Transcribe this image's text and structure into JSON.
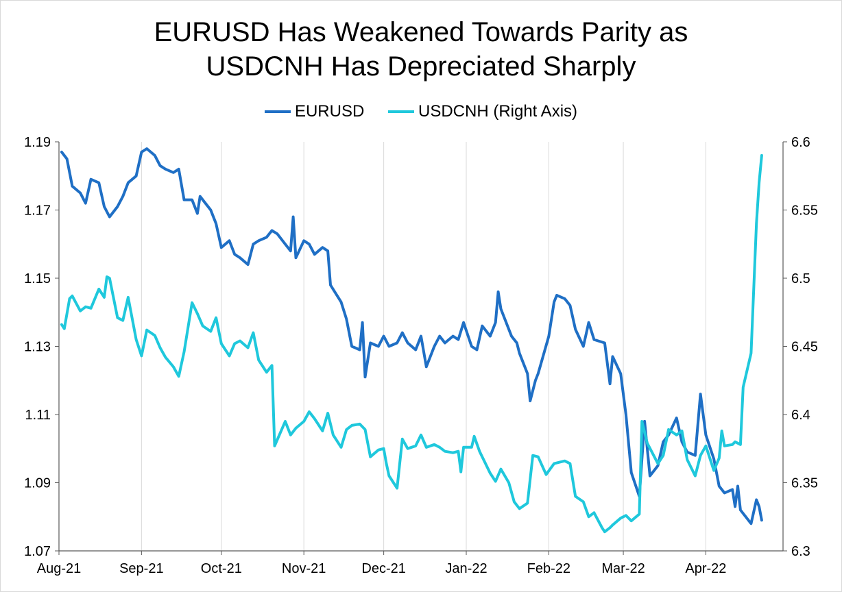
{
  "chart_data": {
    "type": "line",
    "title_lines": [
      "EURUSD Has Weakened Towards Parity as",
      "USDCNH Has Depreciated Sharply"
    ],
    "legend_position": "top-center",
    "grid": "vertical",
    "x_range": [
      "2021-08-01",
      "2022-04-30"
    ],
    "x_tick_labels": [
      "Aug-21",
      "Sep-21",
      "Oct-21",
      "Nov-21",
      "Dec-21",
      "Jan-22",
      "Feb-22",
      "Mar-22",
      "Apr-22"
    ],
    "x_tick_dates": [
      "2021-08-01",
      "2021-09-01",
      "2021-10-01",
      "2021-11-01",
      "2021-12-01",
      "2022-01-01",
      "2022-02-01",
      "2022-03-01",
      "2022-04-01"
    ],
    "y_left": {
      "range": [
        1.07,
        1.19
      ],
      "tick_labels": [
        "1.19",
        "1.17",
        "1.15",
        "1.13",
        "1.11",
        "1.09",
        "1.07"
      ]
    },
    "y_right": {
      "range": [
        6.3,
        6.6
      ],
      "tick_labels": [
        "6.6",
        "6.55",
        "6.5",
        "6.45",
        "6.4",
        "6.35",
        "6.3"
      ]
    },
    "series": [
      {
        "name": "EURUSD",
        "axis": "left",
        "color": "#1f6fc5",
        "points": [
          [
            "2021-08-02",
            1.187
          ],
          [
            "2021-08-04",
            1.185
          ],
          [
            "2021-08-06",
            1.177
          ],
          [
            "2021-08-09",
            1.175
          ],
          [
            "2021-08-11",
            1.172
          ],
          [
            "2021-08-13",
            1.179
          ],
          [
            "2021-08-16",
            1.178
          ],
          [
            "2021-08-18",
            1.171
          ],
          [
            "2021-08-20",
            1.168
          ],
          [
            "2021-08-23",
            1.171
          ],
          [
            "2021-08-25",
            1.174
          ],
          [
            "2021-08-27",
            1.178
          ],
          [
            "2021-08-30",
            1.18
          ],
          [
            "2021-09-01",
            1.187
          ],
          [
            "2021-09-03",
            1.188
          ],
          [
            "2021-09-06",
            1.186
          ],
          [
            "2021-09-08",
            1.183
          ],
          [
            "2021-09-10",
            1.182
          ],
          [
            "2021-09-13",
            1.181
          ],
          [
            "2021-09-15",
            1.182
          ],
          [
            "2021-09-17",
            1.173
          ],
          [
            "2021-09-20",
            1.173
          ],
          [
            "2021-09-22",
            1.169
          ],
          [
            "2021-09-23",
            1.174
          ],
          [
            "2021-09-27",
            1.17
          ],
          [
            "2021-09-29",
            1.166
          ],
          [
            "2021-10-01",
            1.159
          ],
          [
            "2021-10-04",
            1.161
          ],
          [
            "2021-10-06",
            1.157
          ],
          [
            "2021-10-08",
            1.156
          ],
          [
            "2021-10-11",
            1.154
          ],
          [
            "2021-10-13",
            1.16
          ],
          [
            "2021-10-15",
            1.161
          ],
          [
            "2021-10-18",
            1.162
          ],
          [
            "2021-10-20",
            1.164
          ],
          [
            "2021-10-22",
            1.163
          ],
          [
            "2021-10-25",
            1.16
          ],
          [
            "2021-10-27",
            1.158
          ],
          [
            "2021-10-28",
            1.168
          ],
          [
            "2021-10-29",
            1.156
          ],
          [
            "2021-11-01",
            1.161
          ],
          [
            "2021-11-03",
            1.16
          ],
          [
            "2021-11-05",
            1.157
          ],
          [
            "2021-11-08",
            1.159
          ],
          [
            "2021-11-10",
            1.158
          ],
          [
            "2021-11-11",
            1.148
          ],
          [
            "2021-11-15",
            1.143
          ],
          [
            "2021-11-17",
            1.138
          ],
          [
            "2021-11-19",
            1.13
          ],
          [
            "2021-11-22",
            1.129
          ],
          [
            "2021-11-23",
            1.137
          ],
          [
            "2021-11-24",
            1.121
          ],
          [
            "2021-11-26",
            1.131
          ],
          [
            "2021-11-29",
            1.13
          ],
          [
            "2021-12-01",
            1.133
          ],
          [
            "2021-12-03",
            1.13
          ],
          [
            "2021-12-06",
            1.131
          ],
          [
            "2021-12-08",
            1.134
          ],
          [
            "2021-12-10",
            1.131
          ],
          [
            "2021-12-13",
            1.129
          ],
          [
            "2021-12-15",
            1.133
          ],
          [
            "2021-12-17",
            1.124
          ],
          [
            "2021-12-20",
            1.13
          ],
          [
            "2021-12-22",
            1.133
          ],
          [
            "2021-12-24",
            1.131
          ],
          [
            "2021-12-27",
            1.133
          ],
          [
            "2021-12-29",
            1.132
          ],
          [
            "2021-12-31",
            1.137
          ],
          [
            "2022-01-03",
            1.13
          ],
          [
            "2022-01-05",
            1.129
          ],
          [
            "2022-01-07",
            1.136
          ],
          [
            "2022-01-10",
            1.133
          ],
          [
            "2022-01-12",
            1.137
          ],
          [
            "2022-01-13",
            1.146
          ],
          [
            "2022-01-14",
            1.141
          ],
          [
            "2022-01-18",
            1.133
          ],
          [
            "2022-01-20",
            1.131
          ],
          [
            "2022-01-21",
            1.128
          ],
          [
            "2022-01-24",
            1.122
          ],
          [
            "2022-01-25",
            1.114
          ],
          [
            "2022-01-27",
            1.12
          ],
          [
            "2022-01-28",
            1.122
          ],
          [
            "2022-02-01",
            1.133
          ],
          [
            "2022-02-03",
            1.143
          ],
          [
            "2022-02-04",
            1.145
          ],
          [
            "2022-02-07",
            1.144
          ],
          [
            "2022-02-09",
            1.142
          ],
          [
            "2022-02-11",
            1.135
          ],
          [
            "2022-02-14",
            1.13
          ],
          [
            "2022-02-16",
            1.137
          ],
          [
            "2022-02-18",
            1.132
          ],
          [
            "2022-02-22",
            1.131
          ],
          [
            "2022-02-24",
            1.119
          ],
          [
            "2022-02-25",
            1.127
          ],
          [
            "2022-02-28",
            1.122
          ],
          [
            "2022-03-02",
            1.11
          ],
          [
            "2022-03-04",
            1.093
          ],
          [
            "2022-03-07",
            1.086
          ],
          [
            "2022-03-09",
            1.108
          ],
          [
            "2022-03-11",
            1.092
          ],
          [
            "2022-03-14",
            1.095
          ],
          [
            "2022-03-16",
            1.102
          ],
          [
            "2022-03-18",
            1.104
          ],
          [
            "2022-03-21",
            1.109
          ],
          [
            "2022-03-23",
            1.102
          ],
          [
            "2022-03-25",
            1.099
          ],
          [
            "2022-03-28",
            1.098
          ],
          [
            "2022-03-30",
            1.116
          ],
          [
            "2022-04-01",
            1.104
          ],
          [
            "2022-04-04",
            1.097
          ],
          [
            "2022-04-06",
            1.089
          ],
          [
            "2022-04-08",
            1.087
          ],
          [
            "2022-04-11",
            1.088
          ],
          [
            "2022-04-12",
            1.083
          ],
          [
            "2022-04-13",
            1.089
          ],
          [
            "2022-04-14",
            1.082
          ],
          [
            "2022-04-18",
            1.078
          ],
          [
            "2022-04-20",
            1.085
          ],
          [
            "2022-04-21",
            1.083
          ],
          [
            "2022-04-22",
            1.079
          ]
        ]
      },
      {
        "name": "USDCNH (Right Axis)",
        "axis": "right",
        "color": "#1fc8dc",
        "points": [
          [
            "2021-08-02",
            6.466
          ],
          [
            "2021-08-03",
            6.463
          ],
          [
            "2021-08-05",
            6.485
          ],
          [
            "2021-08-06",
            6.487
          ],
          [
            "2021-08-09",
            6.476
          ],
          [
            "2021-08-11",
            6.479
          ],
          [
            "2021-08-13",
            6.478
          ],
          [
            "2021-08-16",
            6.492
          ],
          [
            "2021-08-18",
            6.486
          ],
          [
            "2021-08-19",
            6.501
          ],
          [
            "2021-08-20",
            6.5
          ],
          [
            "2021-08-23",
            6.471
          ],
          [
            "2021-08-25",
            6.469
          ],
          [
            "2021-08-27",
            6.486
          ],
          [
            "2021-08-30",
            6.455
          ],
          [
            "2021-09-01",
            6.443
          ],
          [
            "2021-09-03",
            6.462
          ],
          [
            "2021-09-06",
            6.458
          ],
          [
            "2021-09-08",
            6.449
          ],
          [
            "2021-09-10",
            6.442
          ],
          [
            "2021-09-13",
            6.435
          ],
          [
            "2021-09-15",
            6.428
          ],
          [
            "2021-09-17",
            6.446
          ],
          [
            "2021-09-20",
            6.482
          ],
          [
            "2021-09-22",
            6.474
          ],
          [
            "2021-09-24",
            6.465
          ],
          [
            "2021-09-27",
            6.461
          ],
          [
            "2021-09-29",
            6.471
          ],
          [
            "2021-10-01",
            6.452
          ],
          [
            "2021-10-04",
            6.443
          ],
          [
            "2021-10-06",
            6.452
          ],
          [
            "2021-10-08",
            6.454
          ],
          [
            "2021-10-11",
            6.449
          ],
          [
            "2021-10-13",
            6.46
          ],
          [
            "2021-10-15",
            6.44
          ],
          [
            "2021-10-18",
            6.431
          ],
          [
            "2021-10-20",
            6.436
          ],
          [
            "2021-10-21",
            6.377
          ],
          [
            "2021-10-25",
            6.395
          ],
          [
            "2021-10-27",
            6.385
          ],
          [
            "2021-10-29",
            6.39
          ],
          [
            "2021-11-01",
            6.395
          ],
          [
            "2021-11-03",
            6.402
          ],
          [
            "2021-11-05",
            6.397
          ],
          [
            "2021-11-08",
            6.388
          ],
          [
            "2021-11-10",
            6.401
          ],
          [
            "2021-11-12",
            6.385
          ],
          [
            "2021-11-15",
            6.376
          ],
          [
            "2021-11-17",
            6.389
          ],
          [
            "2021-11-19",
            6.392
          ],
          [
            "2021-11-22",
            6.393
          ],
          [
            "2021-11-24",
            6.389
          ],
          [
            "2021-11-26",
            6.369
          ],
          [
            "2021-11-29",
            6.374
          ],
          [
            "2021-12-01",
            6.375
          ],
          [
            "2021-12-02",
            6.364
          ],
          [
            "2021-12-03",
            6.355
          ],
          [
            "2021-12-06",
            6.346
          ],
          [
            "2021-12-08",
            6.382
          ],
          [
            "2021-12-10",
            6.375
          ],
          [
            "2021-12-13",
            6.377
          ],
          [
            "2021-12-15",
            6.385
          ],
          [
            "2021-12-17",
            6.376
          ],
          [
            "2021-12-20",
            6.378
          ],
          [
            "2021-12-22",
            6.376
          ],
          [
            "2021-12-24",
            6.373
          ],
          [
            "2021-12-27",
            6.372
          ],
          [
            "2021-12-29",
            6.373
          ],
          [
            "2021-12-30",
            6.358
          ],
          [
            "2021-12-31",
            6.376
          ],
          [
            "2022-01-03",
            6.376
          ],
          [
            "2022-01-04",
            6.384
          ],
          [
            "2022-01-06",
            6.373
          ],
          [
            "2022-01-10",
            6.357
          ],
          [
            "2022-01-12",
            6.351
          ],
          [
            "2022-01-14",
            6.36
          ],
          [
            "2022-01-17",
            6.35
          ],
          [
            "2022-01-19",
            6.336
          ],
          [
            "2022-01-21",
            6.331
          ],
          [
            "2022-01-24",
            6.335
          ],
          [
            "2022-01-26",
            6.37
          ],
          [
            "2022-01-28",
            6.369
          ],
          [
            "2022-01-31",
            6.356
          ],
          [
            "2022-02-03",
            6.364
          ],
          [
            "2022-02-07",
            6.366
          ],
          [
            "2022-02-09",
            6.364
          ],
          [
            "2022-02-11",
            6.34
          ],
          [
            "2022-02-14",
            6.336
          ],
          [
            "2022-02-16",
            6.325
          ],
          [
            "2022-02-18",
            6.328
          ],
          [
            "2022-02-21",
            6.317
          ],
          [
            "2022-02-22",
            6.314
          ],
          [
            "2022-02-24",
            6.317
          ],
          [
            "2022-02-25",
            6.319
          ],
          [
            "2022-02-28",
            6.324
          ],
          [
            "2022-03-02",
            6.326
          ],
          [
            "2022-03-04",
            6.322
          ],
          [
            "2022-03-07",
            6.327
          ],
          [
            "2022-03-08",
            6.395
          ],
          [
            "2022-03-10",
            6.379
          ],
          [
            "2022-03-14",
            6.364
          ],
          [
            "2022-03-16",
            6.37
          ],
          [
            "2022-03-18",
            6.389
          ],
          [
            "2022-03-21",
            6.385
          ],
          [
            "2022-03-23",
            6.388
          ],
          [
            "2022-03-25",
            6.367
          ],
          [
            "2022-03-28",
            6.355
          ],
          [
            "2022-03-30",
            6.37
          ],
          [
            "2022-04-01",
            6.377
          ],
          [
            "2022-04-04",
            6.359
          ],
          [
            "2022-04-06",
            6.368
          ],
          [
            "2022-04-07",
            6.388
          ],
          [
            "2022-04-08",
            6.377
          ],
          [
            "2022-04-11",
            6.378
          ],
          [
            "2022-04-12",
            6.38
          ],
          [
            "2022-04-14",
            6.378
          ],
          [
            "2022-04-15",
            6.42
          ],
          [
            "2022-04-18",
            6.445
          ],
          [
            "2022-04-20",
            6.54
          ],
          [
            "2022-04-21",
            6.57
          ],
          [
            "2022-04-22",
            6.59
          ]
        ]
      }
    ]
  }
}
